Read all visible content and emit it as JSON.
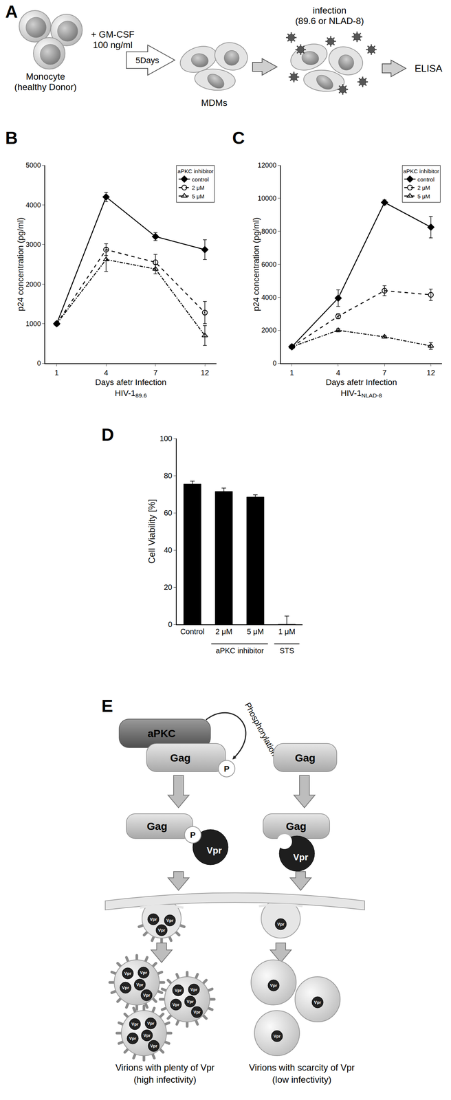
{
  "diagram_A": {
    "panel": "A",
    "monocyte": "Monocyte",
    "donor": "(healthy Donor)",
    "treatment": "+ GM-CSF",
    "dose": "100 ng/ml",
    "duration": "5Days",
    "cells": "MDMs",
    "step": "infection",
    "viruses": "(89.6 or NLAD-8)",
    "assay": "ELISA"
  },
  "chart_data": [
    {
      "panel": "B",
      "type": "line",
      "x_label": "Days afetr Infection",
      "virus": "HIV-1",
      "strain": "89.6",
      "y_label": "p24 concentration (pg/ml)",
      "categories": [
        "1",
        "4",
        "7",
        "12"
      ],
      "ylim": [
        0,
        5000
      ],
      "yticks": [
        0,
        1000,
        2000,
        3000,
        4000,
        5000
      ],
      "grid": false,
      "legend": "upper right",
      "legend_title": "aPKC inhibitor",
      "series": [
        {
          "name": "control",
          "color": "#000000",
          "marker": "diamond",
          "line_style": "solid",
          "values": [
            1000,
            4200,
            3200,
            2870
          ],
          "errors": [
            0,
            120,
            100,
            250
          ]
        },
        {
          "name": "2 μM",
          "color": "#000000",
          "marker": "circle-open",
          "line_style": "dash",
          "values": [
            1000,
            2870,
            2550,
            1280
          ],
          "errors": [
            0,
            150,
            200,
            280
          ]
        },
        {
          "name": "5 μM",
          "color": "#000000",
          "marker": "triangle-up-open",
          "line_style": "dashdot",
          "values": [
            1000,
            2620,
            2380,
            700
          ],
          "errors": [
            0,
            300,
            120,
            250
          ]
        }
      ]
    },
    {
      "panel": "C",
      "type": "line",
      "x_label": "Days afetr Infection",
      "virus": "HIV-1",
      "strain": "NLAD-8",
      "y_label": "p24 concentration (pg/ml)",
      "categories": [
        "1",
        "4",
        "7",
        "12"
      ],
      "ylim": [
        0,
        12000
      ],
      "yticks": [
        0,
        2000,
        4000,
        6000,
        8000,
        10000,
        12000
      ],
      "grid": false,
      "legend": "upper right",
      "legend_title": "aPKC inhibitor",
      "series": [
        {
          "name": "control",
          "color": "#000000",
          "marker": "diamond",
          "line_style": "solid",
          "values": [
            1000,
            3950,
            9750,
            8250
          ],
          "errors": [
            0,
            500,
            150,
            650
          ]
        },
        {
          "name": "2 μM",
          "color": "#000000",
          "marker": "circle-open",
          "line_style": "dash",
          "values": [
            1000,
            2850,
            4400,
            4150
          ],
          "errors": [
            0,
            150,
            300,
            350
          ]
        },
        {
          "name": "5 μM",
          "color": "#000000",
          "marker": "triangle-up-open",
          "line_style": "dashdot",
          "values": [
            1000,
            2000,
            1600,
            1050
          ],
          "errors": [
            0,
            100,
            80,
            200
          ]
        }
      ]
    },
    {
      "panel": "D",
      "type": "bar",
      "y_label": "Cell Viability [%]",
      "categories": [
        "Control",
        "2 μM",
        "5 μM",
        "1 μM"
      ],
      "values": [
        75.5,
        71.5,
        68.5,
        0
      ],
      "errors": [
        1.5,
        1.8,
        1.2,
        4.5
      ],
      "color": "#000000",
      "ylim": [
        0,
        100
      ],
      "yticks": [
        0,
        20,
        40,
        60,
        80,
        100
      ],
      "grid": false,
      "groups": [
        {
          "label": "aPKC inhibitor",
          "categories": [
            "2 μM",
            "5 μM"
          ]
        },
        {
          "label": "STS",
          "categories": [
            "1 μM"
          ]
        }
      ]
    }
  ],
  "diagram_E": {
    "panel": "E",
    "kinase": "aPKC",
    "protein": "Gag",
    "phospho": "P",
    "reaction": "Phosphorylation",
    "accessory": "Vpr",
    "left_caption": [
      "Virions with plenty of Vpr",
      "(high infectivity)"
    ],
    "right_caption": [
      "Virions with scarcity of Vpr",
      "(low infectivity)"
    ]
  }
}
